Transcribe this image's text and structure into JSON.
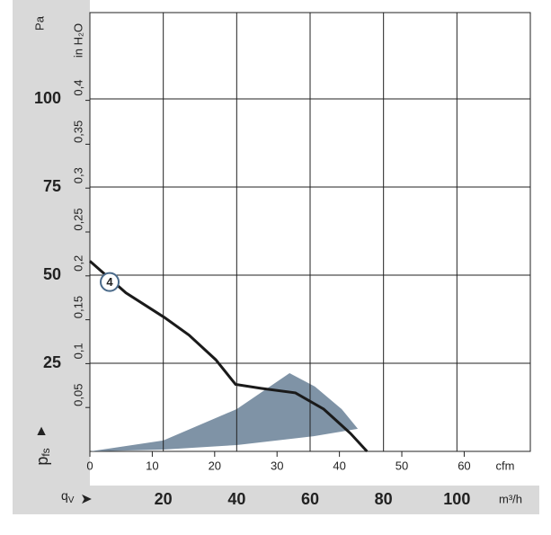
{
  "chart_data": {
    "type": "line",
    "y_unit": "Pa",
    "y2_unit": "in H₂O",
    "x2_unit": "cfm",
    "x_unit": "m³/h",
    "y_label": {
      "main": "p",
      "sub": "fs"
    },
    "x_label": {
      "main": "q",
      "sub": "V"
    },
    "xlim": [
      0,
      120
    ],
    "xticks": [
      20,
      40,
      60,
      80,
      100
    ],
    "ylim": [
      0,
      124.5
    ],
    "yticks": [
      25,
      50,
      75,
      100
    ],
    "y2lim": [
      0,
      0.5
    ],
    "y2ticks": [
      {
        "value": 0.05,
        "label": "0,05"
      },
      {
        "value": 0.1,
        "label": "0,1"
      },
      {
        "value": 0.15,
        "label": "0,15"
      },
      {
        "value": 0.2,
        "label": "0,2"
      },
      {
        "value": 0.25,
        "label": "0,25"
      },
      {
        "value": 0.3,
        "label": "0,3"
      },
      {
        "value": 0.35,
        "label": "0,35"
      },
      {
        "value": 0.4,
        "label": "0,4"
      }
    ],
    "x2lim": [
      0,
      70.6
    ],
    "x2ticks": [
      0,
      10,
      20,
      30,
      40,
      50,
      60
    ],
    "grid": true,
    "series": [
      {
        "name": "4",
        "color": "#1a1a1a",
        "x": [
          0,
          9.8,
          20.3,
          27,
          34.3,
          39.7,
          46.6,
          56,
          63.7,
          71,
          75.5
        ],
        "values": [
          54,
          45,
          38,
          33,
          26,
          19,
          17.9,
          16.6,
          12,
          5.1,
          0
        ]
      }
    ],
    "area": {
      "color": "#7f93a6",
      "x": [
        0,
        20,
        40,
        54.4,
        61.3,
        68.6,
        73,
        61,
        40,
        20
      ],
      "values": [
        0,
        3.1,
        12,
        22.2,
        18.4,
        12,
        6.4,
        4.3,
        1.8,
        0.5
      ]
    }
  }
}
